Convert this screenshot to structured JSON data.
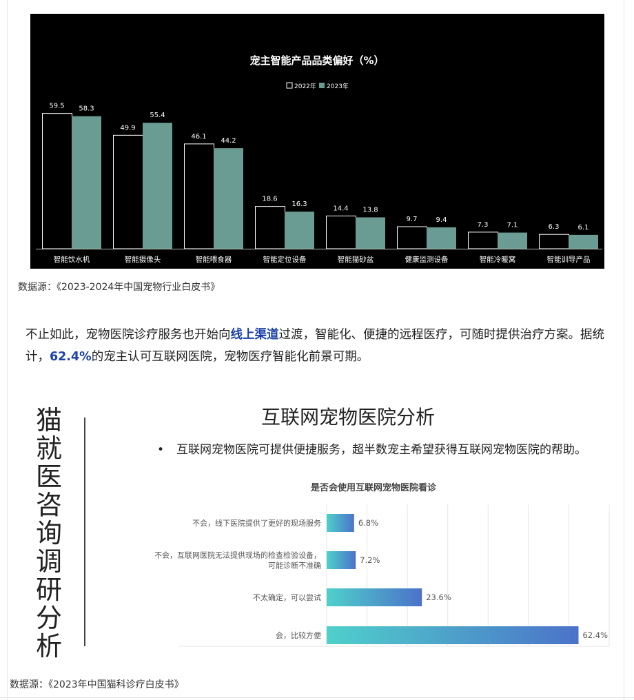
{
  "top_chart": {
    "chart_data": {
      "type": "bar",
      "title": "宠主智能产品品类偏好（%）",
      "categories": [
        "智能饮水机",
        "智能摄像头",
        "智能喂食器",
        "智能定位设备",
        "智能猫砂盆",
        "健康监测设备",
        "智能冷暖窝",
        "智能训导产品"
      ],
      "series": [
        {
          "name": "2022年",
          "values": [
            59.5,
            49.9,
            46.1,
            18.6,
            14.4,
            9.7,
            7.3,
            6.3
          ],
          "color": "#000000",
          "stroke": "#ffffff"
        },
        {
          "name": "2023年",
          "values": [
            58.3,
            55.4,
            44.2,
            16.3,
            13.8,
            9.4,
            7.1,
            6.1
          ],
          "color": "#6b9c93"
        }
      ],
      "value_labels": {
        "s2022": [
          "59.5",
          "49.9",
          "46.1",
          "18.6",
          "14.4",
          "9.7",
          "7.3",
          "6.3"
        ],
        "s2023": [
          "58.3",
          "55.4",
          "44.2",
          "16.3",
          "13.8",
          "9.4",
          "7.1",
          "6.1"
        ]
      },
      "ylim": [
        0,
        60
      ],
      "xlabel": "",
      "ylabel": "",
      "legend_position": "top-center",
      "grid": false,
      "background": "#000000"
    }
  },
  "source1": "数据源：《2023-2024年中国宠物行业白皮书》",
  "paragraph": {
    "p1": "不止如此，宠物医院诊疗服务也开始向",
    "hl1": "线上渠道",
    "p2": "过渡，智能化、便捷的远程医疗，可随时提供治疗方案。据统计，",
    "hl2": "62.4%",
    "p3": "的宠主认可互联网医院，宠物医疗智能化前景可期。",
    "highlight_color": "#1a3fa8"
  },
  "infographic": {
    "vertical_title": [
      "猫",
      "就",
      "医",
      "咨",
      "询",
      "调",
      "研",
      "分",
      "析"
    ],
    "title": "互联网宠物医院分析",
    "bullet_mark": "•",
    "bullet": "互联网宠物医院可提供便捷服务，超半数宠主希望获得互联网宠物医院的帮助。",
    "chart_data": {
      "type": "bar",
      "orientation": "horizontal",
      "title": "是否会使用互联网宠物医院看诊",
      "categories": [
        [
          "不会，线下医院提供了更好的现场服务"
        ],
        [
          "不会，互联网医院无法提供现场的检查检验设备，",
          "可能诊断不准确"
        ],
        [
          "不太确定，可以尝试"
        ],
        [
          "会，比较方便"
        ]
      ],
      "values": [
        6.8,
        7.2,
        23.6,
        62.4
      ],
      "value_labels": [
        "6.8%",
        "7.2%",
        "23.6%",
        "62.4%"
      ],
      "xlim": [
        0,
        70
      ],
      "grid": true,
      "gradient": [
        "#4fd0cb",
        "#4b72c9"
      ]
    }
  },
  "source2": "数据源：《2023年中国猫科诊疗白皮书》"
}
